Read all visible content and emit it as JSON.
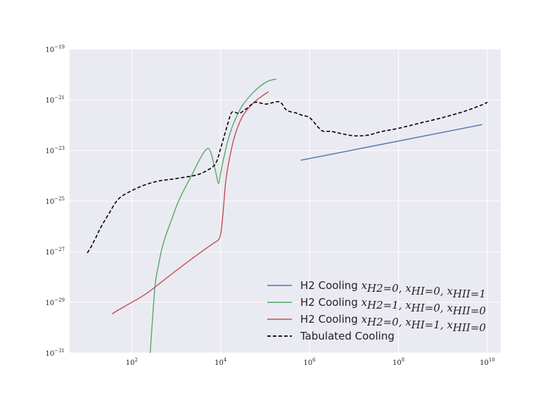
{
  "chart_data": {
    "type": "line",
    "x_scale": "log",
    "y_scale": "log",
    "grid": true,
    "legend_placement": "lower-right",
    "xlim": [
      4,
      20000000000.0
    ],
    "ylim": [
      1e-31,
      1e-19
    ],
    "x_ticks": [
      {
        "value": 100,
        "base": "10",
        "exp": "2"
      },
      {
        "value": 10000,
        "base": "10",
        "exp": "4"
      },
      {
        "value": 1000000,
        "base": "10",
        "exp": "6"
      },
      {
        "value": 100000000,
        "base": "10",
        "exp": "8"
      },
      {
        "value": 10000000000,
        "base": "10",
        "exp": "10"
      }
    ],
    "y_ticks": [
      {
        "value": 1e-31,
        "base": "10",
        "exp": "−31"
      },
      {
        "value": 1e-29,
        "base": "10",
        "exp": "−29"
      },
      {
        "value": 1e-27,
        "base": "10",
        "exp": "−27"
      },
      {
        "value": 1e-25,
        "base": "10",
        "exp": "−25"
      },
      {
        "value": 1e-23,
        "base": "10",
        "exp": "−23"
      },
      {
        "value": 1e-21,
        "base": "10",
        "exp": "−21"
      },
      {
        "value": 1e-19,
        "base": "10",
        "exp": "−19"
      }
    ],
    "series": [
      {
        "name_prefix": "H2 Cooling ",
        "name_math": "x_{H2}=0, x_{HI}=0, x_{HII}=1",
        "legend_parts": [
          [
            "x",
            "H2"
          ],
          [
            "=0, ",
            ""
          ],
          [
            "x",
            "HI"
          ],
          [
            "=0, ",
            ""
          ],
          [
            "x",
            "HII"
          ],
          [
            "=1",
            ""
          ]
        ],
        "color": "#4c72b0",
        "dash": false,
        "x": [
          630000.0,
          7600000000.0
        ],
        "y": [
          4.1e-24,
          1.05e-22
        ]
      },
      {
        "name_prefix": "H2 Cooling ",
        "name_math": "x_{H2}=1, x_{HI}=0, x_{HII}=0",
        "legend_parts": [
          [
            "x",
            "H2"
          ],
          [
            "=1, ",
            ""
          ],
          [
            "x",
            "HI"
          ],
          [
            "=0, ",
            ""
          ],
          [
            "x",
            "HII"
          ],
          [
            "=0",
            ""
          ]
        ],
        "color": "#55a868",
        "dash": false,
        "x": [
          260,
          300,
          340,
          400,
          480,
          600,
          800,
          1100,
          1600,
          2200,
          3000,
          3800,
          4500,
          5100,
          5600,
          6200,
          7000,
          8000,
          9000,
          10000,
          12000,
          15000,
          20000,
          30000,
          50000,
          80000,
          120000,
          180000
        ],
        "y": [
          1e-31,
          4e-30,
          6e-29,
          3e-28,
          1.4e-27,
          5e-27,
          2e-26,
          9e-26,
          3.5e-25,
          1e-24,
          3e-24,
          6.5e-24,
          1e-23,
          1.2e-23,
          1.1e-23,
          7e-24,
          3e-24,
          1.1e-24,
          5e-25,
          1.3e-24,
          6e-24,
          3e-23,
          1.3e-22,
          5.5e-22,
          1.7e-21,
          3.6e-21,
          5.6e-21,
          6.6e-21
        ]
      },
      {
        "name_prefix": "H2 Cooling ",
        "name_math": "x_{H2}=0, x_{HI}=1, x_{HII}=0",
        "legend_parts": [
          [
            "x",
            "H2"
          ],
          [
            "=0, ",
            ""
          ],
          [
            "x",
            "HI"
          ],
          [
            "=1, ",
            ""
          ],
          [
            "x",
            "HII"
          ],
          [
            "=0",
            ""
          ]
        ],
        "color": "#c44e52",
        "dash": false,
        "x": [
          36,
          50,
          70,
          100,
          150,
          250,
          500,
          1000,
          2000,
          4000,
          7000,
          9000,
          10000,
          11000,
          12000,
          13000,
          15000,
          20000,
          30000,
          50000,
          80000,
          120000
        ],
        "y": [
          3.5e-30,
          5e-30,
          7e-30,
          1e-29,
          1.5e-29,
          2.7e-29,
          7e-29,
          1.8e-28,
          4.5e-28,
          1.1e-27,
          2.2e-27,
          3e-27,
          5e-27,
          2e-26,
          1.2e-25,
          6e-25,
          3e-24,
          3e-23,
          2e-22,
          6.5e-22,
          1.3e-21,
          2.1e-21
        ]
      },
      {
        "name_prefix": "Tabulated Cooling",
        "name_math": "",
        "legend_parts": [],
        "color": "#000000",
        "dash": true,
        "x": [
          10,
          12,
          16,
          20,
          30,
          50,
          100,
          200,
          400,
          1000,
          3000,
          6000,
          8000,
          10000,
          13000,
          17000,
          20000,
          25000,
          30000,
          40000,
          60000,
          100000,
          150000,
          200000,
          240000,
          280000,
          350000,
          500000,
          700000,
          1000000,
          1500000,
          2000000,
          3000000,
          5000000,
          10000000,
          20000000,
          40000000,
          100000000,
          300000000,
          1000000000,
          3000000000,
          7000000000,
          10000000000
        ],
        "y": [
          9e-28,
          1.5e-27,
          4e-27,
          9e-27,
          3e-26,
          1.2e-25,
          2.6e-25,
          4.4e-25,
          6.2e-25,
          7.8e-25,
          1.1e-24,
          2e-24,
          3.5e-24,
          1.2e-23,
          6e-23,
          2.8e-22,
          3.3e-22,
          2.9e-22,
          3.3e-22,
          4.8e-22,
          8e-22,
          6.8e-22,
          7.8e-22,
          8.5e-22,
          7e-22,
          4.5e-22,
          3.5e-22,
          3e-22,
          2.4e-22,
          2e-22,
          9e-23,
          5.8e-23,
          5.7e-23,
          4.7e-23,
          3.8e-23,
          4e-23,
          5.5e-23,
          7.5e-23,
          1.2e-22,
          2e-22,
          3.5e-22,
          6e-22,
          8e-22
        ]
      }
    ]
  }
}
